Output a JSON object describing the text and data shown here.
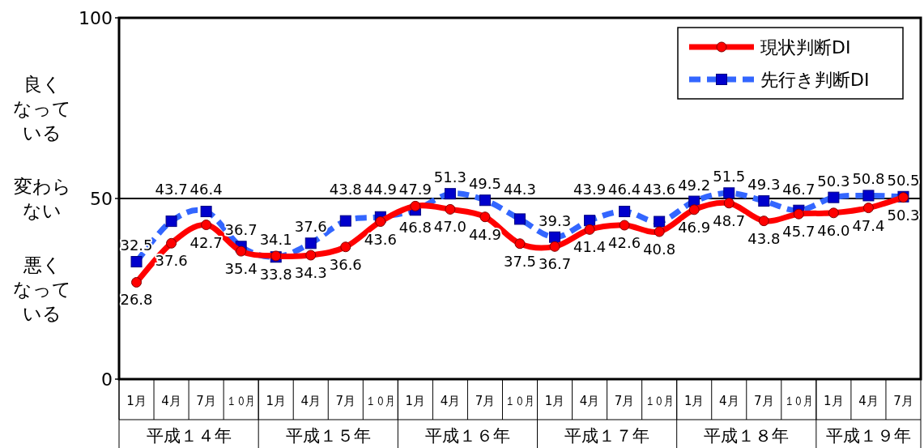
{
  "chart_data": {
    "type": "line",
    "categories": [
      "1月",
      "4月",
      "7月",
      "１０月",
      "1月",
      "4月",
      "7月",
      "１０月",
      "1月",
      "4月",
      "7月",
      "１０月",
      "1月",
      "4月",
      "7月",
      "１０月",
      "1月",
      "4月",
      "7月",
      "１０月",
      "1月",
      "4月",
      "7月"
    ],
    "series": [
      {
        "name": "現状判断DI",
        "color": "#ff0000",
        "marker": "circle",
        "line_style": "solid",
        "values": [
          26.8,
          37.6,
          42.7,
          35.4,
          34.1,
          34.3,
          36.6,
          43.6,
          47.9,
          47.0,
          44.9,
          37.5,
          36.7,
          41.4,
          42.6,
          40.8,
          46.9,
          48.7,
          43.8,
          45.7,
          46.0,
          47.4,
          50.3
        ],
        "value_labels": [
          "26.8",
          "37.6",
          "42.7",
          "35.4",
          "34.1",
          "34.3",
          "36.6",
          "43.6",
          "47.9",
          "47.0",
          "44.9",
          "37.5",
          "36.7",
          "41.4",
          "42.6",
          "40.8",
          "46.9",
          "48.7",
          "43.8",
          "45.7",
          "46.0",
          "47.4",
          "50.3"
        ]
      },
      {
        "name": "先行き判断DI",
        "color": "#3366ff",
        "marker": "square",
        "line_style": "dashed",
        "values": [
          32.5,
          43.7,
          46.4,
          36.7,
          33.8,
          37.6,
          43.8,
          44.9,
          46.8,
          51.3,
          49.5,
          44.3,
          39.3,
          43.9,
          46.4,
          43.6,
          49.2,
          51.5,
          49.3,
          46.7,
          50.3,
          50.8,
          50.5
        ],
        "value_labels": [
          "32.5",
          "43.7",
          "46.4",
          "36.7",
          "33.8",
          "37.6",
          "43.8",
          "44.9",
          "46.8",
          "51.3",
          "49.5",
          "44.3",
          "39.3",
          "43.9",
          "46.4",
          "43.6",
          "49.2",
          "51.5",
          "49.3",
          "46.7",
          "50.3",
          "50.8",
          "50.5"
        ]
      }
    ],
    "ylim": [
      0,
      100
    ],
    "yticks": [
      0,
      50,
      100
    ],
    "legend": "top right",
    "ref_lines": [
      {
        "axis": "y",
        "value": 50,
        "color": "#000000"
      }
    ],
    "annotations": [
      "良くなっている",
      "変わらない",
      "悪くなっている",
      "平成１４年",
      "平成１５年",
      "平成１６年",
      "平成１７年",
      "平成１８年",
      "平成１９年"
    ]
  }
}
